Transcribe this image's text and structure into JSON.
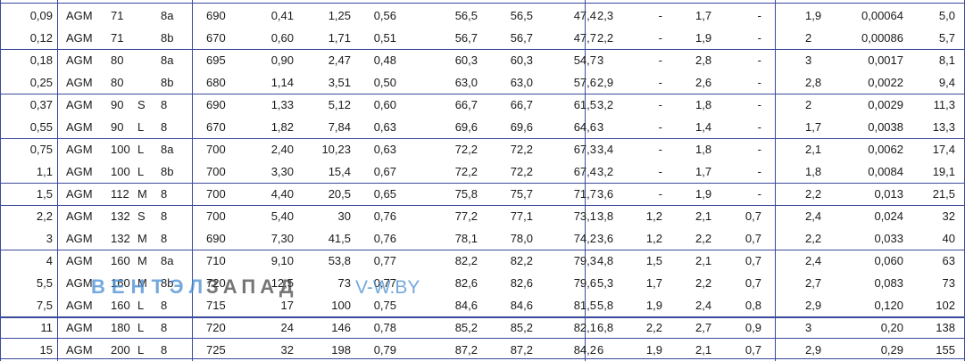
{
  "rows": [
    [
      "0,09",
      "AGM",
      "71",
      "",
      "8a",
      "690",
      "0,41",
      "1,25",
      "0,56",
      "56,5",
      "56,5",
      "47,4",
      "2,3",
      "-",
      "1,7",
      "-",
      "1,9",
      "0,00064",
      "5,0"
    ],
    [
      "0,12",
      "AGM",
      "71",
      "",
      "8b",
      "670",
      "0,60",
      "1,71",
      "0,51",
      "56,7",
      "56,7",
      "47,7",
      "2,2",
      "-",
      "1,9",
      "-",
      "2",
      "0,00086",
      "5,7"
    ],
    [
      "0,18",
      "AGM",
      "80",
      "",
      "8a",
      "695",
      "0,90",
      "2,47",
      "0,48",
      "60,3",
      "60,3",
      "54,7",
      "3",
      "-",
      "2,8",
      "-",
      "3",
      "0,0017",
      "8,1"
    ],
    [
      "0,25",
      "AGM",
      "80",
      "",
      "8b",
      "680",
      "1,14",
      "3,51",
      "0,50",
      "63,0",
      "63,0",
      "57,6",
      "2,9",
      "-",
      "2,6",
      "-",
      "2,8",
      "0,0022",
      "9,4"
    ],
    [
      "0,37",
      "AGM",
      "90",
      "S",
      "8",
      "690",
      "1,33",
      "5,12",
      "0,60",
      "66,7",
      "66,7",
      "61,5",
      "3,2",
      "-",
      "1,8",
      "-",
      "2",
      "0,0029",
      "11,3"
    ],
    [
      "0,55",
      "AGM",
      "90",
      "L",
      "8",
      "670",
      "1,82",
      "7,84",
      "0,63",
      "69,6",
      "69,6",
      "64,6",
      "3",
      "-",
      "1,4",
      "-",
      "1,7",
      "0,0038",
      "13,3"
    ],
    [
      "0,75",
      "AGM",
      "100",
      "L",
      "8a",
      "700",
      "2,40",
      "10,23",
      "0,63",
      "72,2",
      "72,2",
      "67,3",
      "3,4",
      "-",
      "1,8",
      "-",
      "2,1",
      "0,0062",
      "17,4"
    ],
    [
      "1,1",
      "AGM",
      "100",
      "L",
      "8b",
      "700",
      "3,30",
      "15,4",
      "0,67",
      "72,2",
      "72,2",
      "67,4",
      "3,2",
      "-",
      "1,7",
      "-",
      "1,8",
      "0,0084",
      "19,1"
    ],
    [
      "1,5",
      "AGM",
      "112",
      "M",
      "8",
      "700",
      "4,40",
      "20,5",
      "0,65",
      "75,8",
      "75,7",
      "71,7",
      "3,6",
      "-",
      "1,9",
      "-",
      "2,2",
      "0,013",
      "21,5"
    ],
    [
      "2,2",
      "AGM",
      "132",
      "S",
      "8",
      "700",
      "5,40",
      "30",
      "0,76",
      "77,2",
      "77,1",
      "73,1",
      "3,8",
      "1,2",
      "2,1",
      "0,7",
      "2,4",
      "0,024",
      "32"
    ],
    [
      "3",
      "AGM",
      "132",
      "M",
      "8",
      "690",
      "7,30",
      "41,5",
      "0,76",
      "78,1",
      "78,0",
      "74,2",
      "3,6",
      "1,2",
      "2,2",
      "0,7",
      "2,2",
      "0,033",
      "40"
    ],
    [
      "4",
      "AGM",
      "160",
      "M",
      "8a",
      "710",
      "9,10",
      "53,8",
      "0,77",
      "82,2",
      "82,2",
      "79,3",
      "4,8",
      "1,5",
      "2,1",
      "0,7",
      "2,4",
      "0,060",
      "63"
    ],
    [
      "5,5",
      "AGM",
      "160",
      "M",
      "8b",
      "720",
      "12,5",
      "73",
      "0,77",
      "82,6",
      "82,6",
      "79,6",
      "5,3",
      "1,7",
      "2,2",
      "0,7",
      "2,7",
      "0,083",
      "73"
    ],
    [
      "7,5",
      "AGM",
      "160",
      "L",
      "8",
      "715",
      "17",
      "100",
      "0,75",
      "84,6",
      "84,6",
      "81,5",
      "5,8",
      "1,9",
      "2,4",
      "0,8",
      "2,9",
      "0,120",
      "102"
    ],
    [
      "11",
      "AGM",
      "180",
      "L",
      "8",
      "720",
      "24",
      "146",
      "0,78",
      "85,2",
      "85,2",
      "82,1",
      "6,8",
      "2,2",
      "2,7",
      "0,9",
      "3",
      "0,20",
      "138"
    ],
    [
      "15",
      "AGM",
      "200",
      "L",
      "8",
      "725",
      "32",
      "198",
      "0,79",
      "87,2",
      "87,2",
      "84,2",
      "6",
      "1,9",
      "2,1",
      "0,7",
      "2,9",
      "0,29",
      "155"
    ]
  ],
  "watermark": {
    "part1": "ВЕНТЭЛ",
    "part2": "ЗАПАД",
    "part3": "V-W.BY"
  }
}
